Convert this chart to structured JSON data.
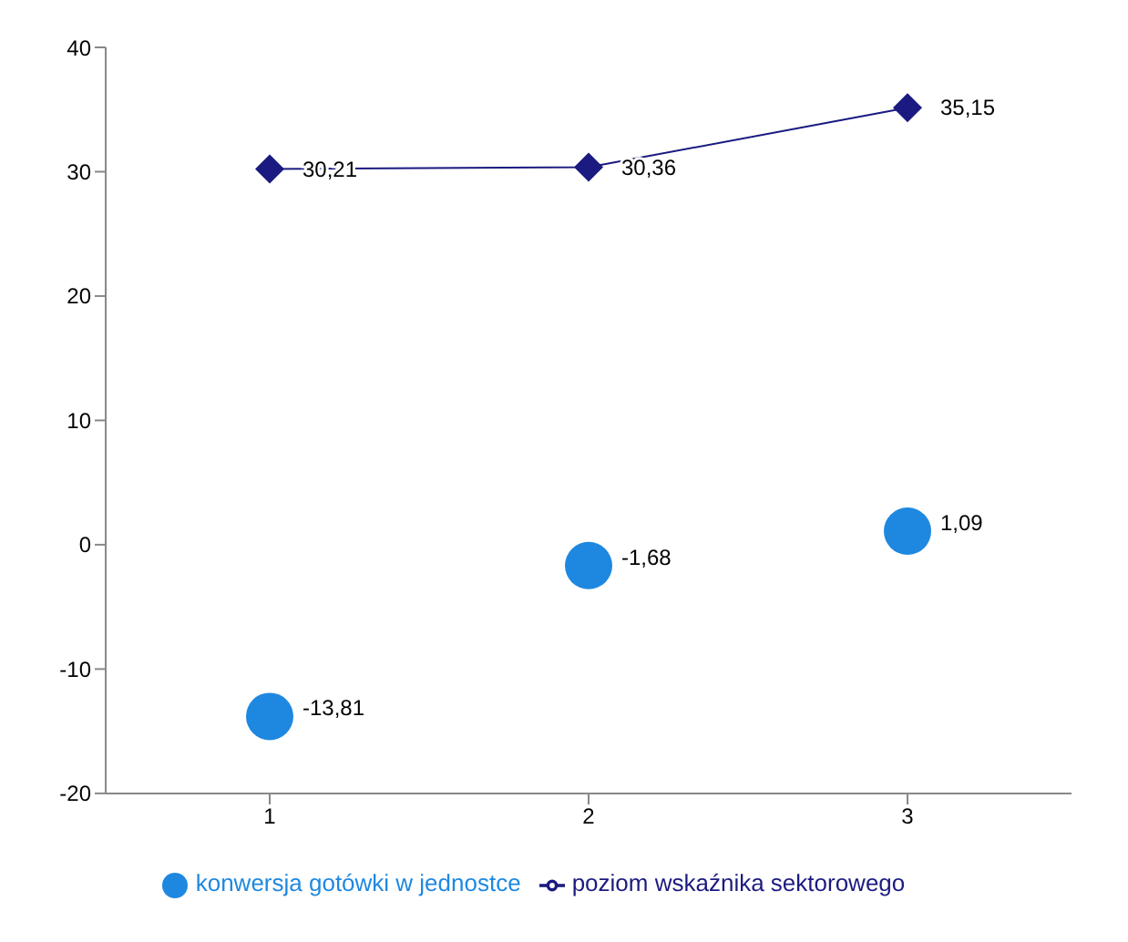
{
  "chart_data": {
    "type": "line",
    "categories": [
      "1",
      "2",
      "3"
    ],
    "series": [
      {
        "name": "konwersja gotówki w jednostce",
        "type": "scatter",
        "marker": "circle",
        "color": "#1e88e0",
        "values": [
          -13.81,
          -1.68,
          1.09
        ],
        "value_labels": [
          "-13,81",
          "-1,68",
          "1,09"
        ]
      },
      {
        "name": "poziom wskaźnika sektorowego",
        "marker": "diamond",
        "color": "#1a1a80",
        "values": [
          30.21,
          30.36,
          35.15
        ],
        "value_labels": [
          "30,21",
          "30,36",
          "35,15"
        ]
      }
    ],
    "ylim": [
      -20,
      40
    ],
    "yticks": [
      -20,
      -10,
      0,
      10,
      20,
      30,
      40
    ],
    "grid": false,
    "legend": "bottom"
  }
}
